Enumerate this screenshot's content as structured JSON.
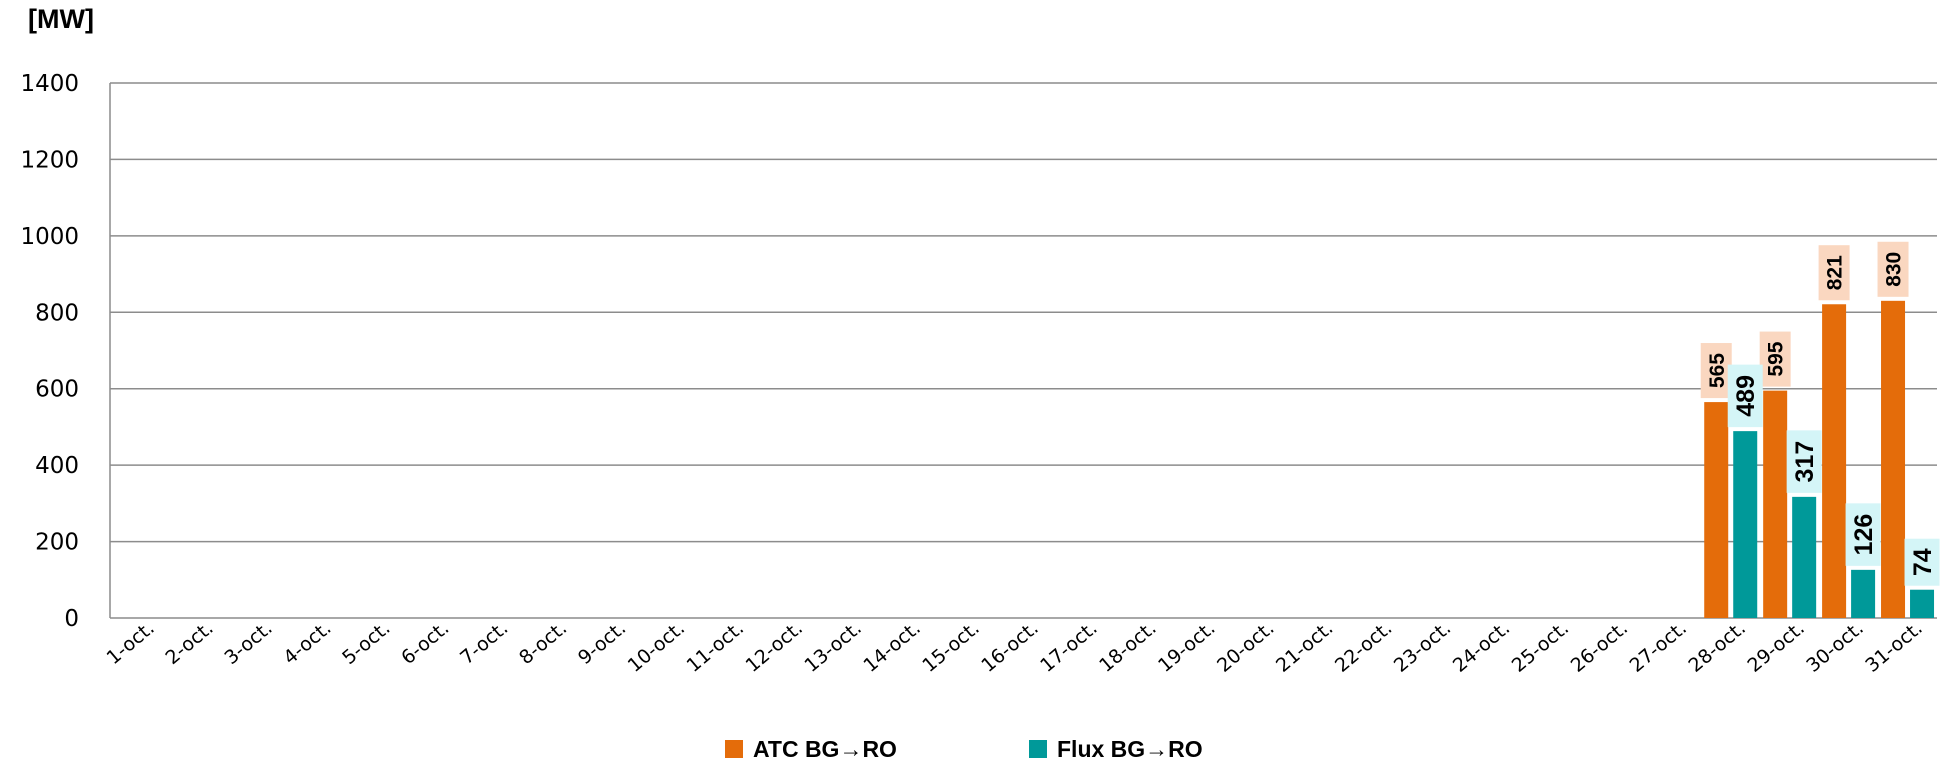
{
  "chart_data": {
    "type": "bar",
    "ylabel": "[MW]",
    "xlabel": "",
    "title": "",
    "ylim": [
      0,
      1400
    ],
    "yticks": [
      0,
      200,
      400,
      600,
      800,
      1000,
      1200,
      1400
    ],
    "grid": true,
    "legend_position": "bottom",
    "categories": [
      "1-oct.",
      "2-oct.",
      "3-oct.",
      "4-oct.",
      "5-oct.",
      "6-oct.",
      "7-oct.",
      "8-oct.",
      "9-oct.",
      "10-oct.",
      "11-oct.",
      "12-oct.",
      "13-oct.",
      "14-oct.",
      "15-oct.",
      "16-oct.",
      "17-oct.",
      "18-oct.",
      "19-oct.",
      "20-oct.",
      "21-oct.",
      "22-oct.",
      "23-oct.",
      "24-oct.",
      "25-oct.",
      "26-oct.",
      "27-oct.",
      "28-oct.",
      "29-oct.",
      "30-oct.",
      "31-oct."
    ],
    "series": [
      {
        "name": "ATC BG→RO",
        "color": "#E46C0A",
        "label_bg": "#FAD7C0",
        "values": [
          null,
          null,
          null,
          null,
          null,
          null,
          null,
          null,
          null,
          null,
          null,
          null,
          null,
          null,
          null,
          null,
          null,
          null,
          null,
          null,
          null,
          null,
          null,
          null,
          null,
          null,
          null,
          565,
          595,
          821,
          830
        ]
      },
      {
        "name": "Flux BG→RO",
        "color": "#009999",
        "label_bg": "#D4F5F7",
        "values": [
          null,
          null,
          null,
          null,
          null,
          null,
          null,
          null,
          null,
          null,
          null,
          null,
          null,
          null,
          null,
          null,
          null,
          null,
          null,
          null,
          null,
          null,
          null,
          null,
          null,
          null,
          null,
          489,
          317,
          126,
          74
        ]
      }
    ]
  }
}
